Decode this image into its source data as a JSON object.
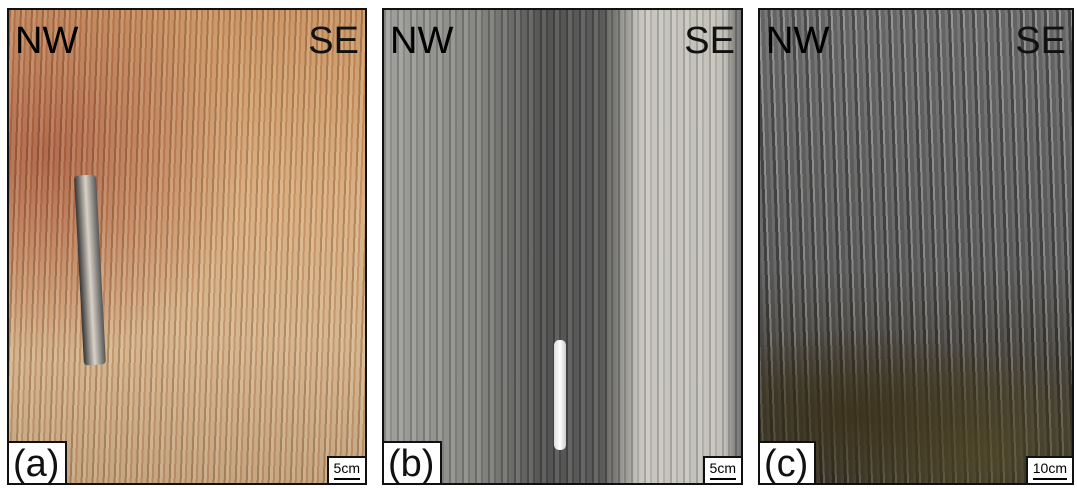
{
  "panels": [
    {
      "label": "(a)",
      "left": "NW",
      "right": "SE",
      "scale": "5cm"
    },
    {
      "label": "(b)",
      "left": "NW",
      "right": "SE",
      "scale": "5cm"
    },
    {
      "label": "(c)",
      "left": "NW",
      "right": "SE",
      "scale": "10cm"
    }
  ]
}
